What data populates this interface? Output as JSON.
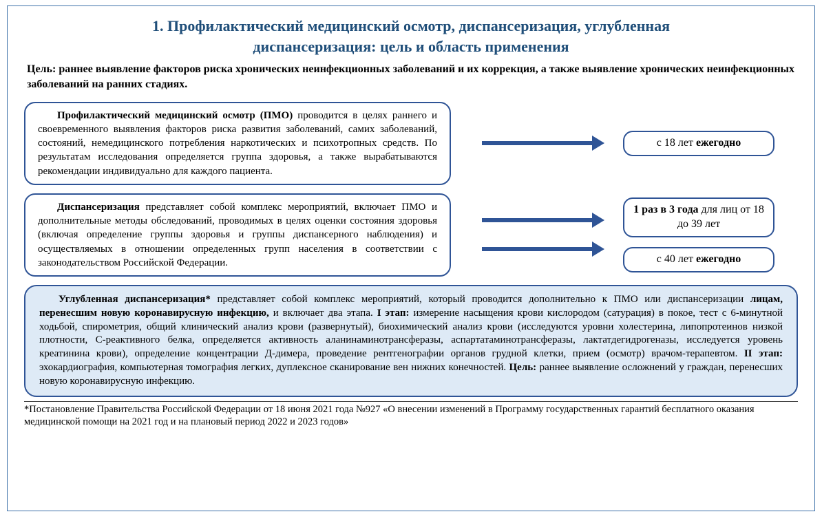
{
  "colors": {
    "heading": "#1f4e79",
    "border": "#2f5496",
    "arrow": "#2f5496",
    "wide_bg": "#deeaf6",
    "page_border": "#3b6fa8",
    "text": "#000000"
  },
  "title_line1": "1. Профилактический медицинский осмотр, диспансеризация, углубленная",
  "title_line2": "диспансеризация: цель и область применения",
  "goal_label": "Цель: ",
  "goal_text": "раннее выявление факторов риска хронических неинфекционных заболеваний и их коррекция, а также выявление хронических неинфекционных заболеваний на ранних стадиях.",
  "box1": {
    "lead": "Профилактический медицинский осмотр (ПМО) ",
    "body": "проводится в целях раннего и своевременного выявления факторов риска развития заболеваний, самих заболеваний, состояний, немедицинского потребления наркотических и психотропных средств. По результатам исследования определяется группа здоровья, а также вырабатываются рекомендации индивидуально для каждого пациента.",
    "freq_prefix": "с 18 лет ",
    "freq_bold": "ежегодно"
  },
  "box2": {
    "lead": "Диспансеризация ",
    "body": "представляет собой комплекс мероприятий, включает ПМО и дополнительные методы обследований, проводимых в целях оценки состояния здоровья (включая определение группы здоровья и группы диспансерного наблюдения) и осуществляемых в отношении определенных групп населения в соответствии с законодательством Российской Федерации.",
    "freq1_bold": "1 раз в 3 года",
    "freq1_rest": " для лиц от 18 до 39 лет",
    "freq2_prefix": "с 40 лет ",
    "freq2_bold": "ежегодно"
  },
  "box3": {
    "lead": "Углубленная диспансеризация* ",
    "p1": "представляет собой комплекс мероприятий, который проводится дополнительно к ПМО или диспансеризации ",
    "bold1": "лицам, перенесшим новую коронавирусную инфекцию,",
    "p2": " и включает два этапа. ",
    "stage1_lbl": "I этап:",
    "stage1_text": " измерение насыщения крови кислородом (сатурация) в покое, тест с 6-минутной ходьбой, спирометрия, общий клинический анализ крови (развернутый), биохимический анализ крови (исследуются уровни холестерина, липопротеинов низкой плотности, С-реактивного белка, определяется активность аланинаминотрансферазы, аспартатаминотрансферазы, лактатдегидрогеназы, исследуется уровень креатинина крови), определение концентрации Д-димера, проведение рентгенографии органов грудной клетки, прием (осмотр) врачом-терапевтом. ",
    "stage2_lbl": "II этап:",
    "stage2_text": " эхокардиография, компьютерная томография легких, дуплексное сканирование вен нижних конечностей. ",
    "goal_lbl": "Цель:",
    "goal_text": " раннее выявление осложнений у граждан, перенесших новую коронавирусную инфекцию."
  },
  "footnote": "*Постановление Правительства Российской Федерации от 18 июня 2021 года №927 «О внесении изменений в Программу государственных гарантий бесплатного оказания медицинской помощи на 2021 год и на плановый период 2022 и 2023 годов»"
}
